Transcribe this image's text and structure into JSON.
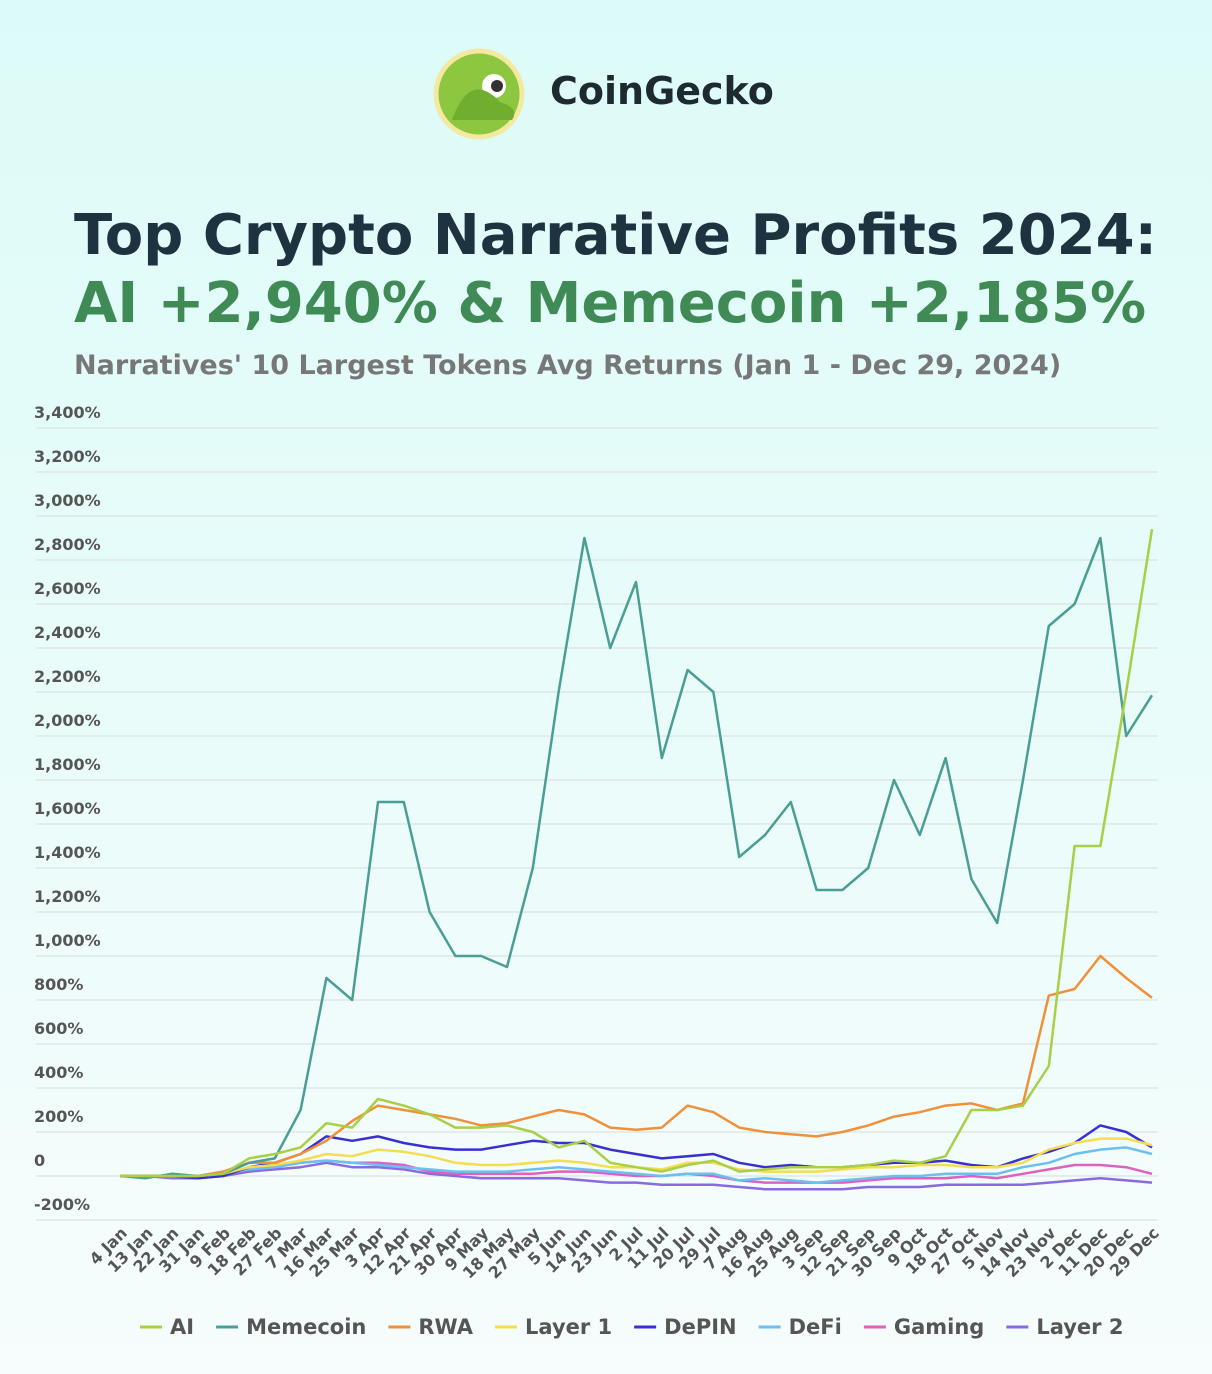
{
  "brand": "CoinGecko",
  "chart_data": {
    "type": "line",
    "title": "Top Crypto Narrative Profits 2024:",
    "headline": "AI +2,940% & Memecoin +2,185%",
    "subtitle": "Narratives' 10 Largest Tokens Avg Returns (Jan 1 - Dec 29, 2024)",
    "x": [
      "4 Jan",
      "13 Jan",
      "22 Jan",
      "31 Jan",
      "9 Feb",
      "18 Feb",
      "27 Feb",
      "7 Mar",
      "16 Mar",
      "25 Mar",
      "3 Apr",
      "12 Apr",
      "21 Apr",
      "30 Apr",
      "9 May",
      "18 May",
      "27 May",
      "5 Jun",
      "14 Jun",
      "23 Jun",
      "2 Jul",
      "11 Jul",
      "20 Jul",
      "29 Jul",
      "7 Aug",
      "16 Aug",
      "25 Aug",
      "3 Sep",
      "12 Sep",
      "21 Sep",
      "30 Sep",
      "9 Oct",
      "18 Oct",
      "27 Oct",
      "5 Nov",
      "14 Nov",
      "23 Nov",
      "2 Dec",
      "11 Dec",
      "20 Dec",
      "29 Dec"
    ],
    "ylim": [
      -200,
      3400
    ],
    "yticks": [
      {
        "value": -200,
        "label": "-200%"
      },
      0,
      {
        "value": 200,
        "label": "200%"
      },
      {
        "value": 400,
        "label": "400%"
      },
      {
        "value": 600,
        "label": "600%"
      },
      {
        "value": 800,
        "label": "800%"
      },
      {
        "value": 1000,
        "label": "1,000%"
      },
      {
        "value": 1200,
        "label": "1,200%"
      },
      {
        "value": 1400,
        "label": "1,400%"
      },
      {
        "value": 1600,
        "label": "1,600%"
      },
      {
        "value": 1800,
        "label": "1,800%"
      },
      {
        "value": 2000,
        "label": "2,000%"
      },
      {
        "value": 2200,
        "label": "2,200%"
      },
      {
        "value": 2400,
        "label": "2,400%"
      },
      {
        "value": 2600,
        "label": "2,600%"
      },
      {
        "value": 2800,
        "label": "2,800%"
      },
      {
        "value": 3000,
        "label": "3,000%"
      },
      {
        "value": 3200,
        "label": "3,200%"
      },
      {
        "value": 3400,
        "label": "3,400%"
      }
    ],
    "grid": true,
    "series": [
      {
        "name": "AI",
        "color": "#a8cf45",
        "values": [
          0,
          0,
          0,
          0,
          10,
          80,
          100,
          130,
          240,
          220,
          350,
          320,
          280,
          220,
          220,
          230,
          200,
          130,
          160,
          60,
          40,
          20,
          50,
          70,
          20,
          30,
          40,
          40,
          40,
          50,
          70,
          60,
          90,
          300,
          300,
          320,
          500,
          1500,
          1500,
          2200,
          2940
        ]
      },
      {
        "name": "Memecoin",
        "color": "#4a9e94",
        "values": [
          0,
          -10,
          10,
          0,
          10,
          60,
          80,
          300,
          900,
          800,
          1700,
          1700,
          1200,
          1000,
          1000,
          950,
          1400,
          2200,
          2900,
          2400,
          2700,
          1900,
          2300,
          2200,
          1450,
          1550,
          1700,
          1300,
          1300,
          1400,
          1800,
          1550,
          1900,
          1350,
          1150,
          1800,
          2500,
          2600,
          2900,
          2000,
          2185
        ]
      },
      {
        "name": "RWA",
        "color": "#f0913a",
        "values": [
          0,
          0,
          0,
          0,
          20,
          60,
          60,
          100,
          160,
          250,
          320,
          300,
          280,
          260,
          230,
          240,
          270,
          300,
          280,
          220,
          210,
          220,
          320,
          290,
          220,
          200,
          190,
          180,
          200,
          230,
          270,
          290,
          320,
          330,
          300,
          330,
          820,
          850,
          1000,
          900,
          810
        ]
      },
      {
        "name": "Layer 1",
        "color": "#f5dc50",
        "values": [
          0,
          0,
          0,
          0,
          10,
          40,
          50,
          70,
          100,
          90,
          120,
          110,
          90,
          60,
          50,
          50,
          60,
          70,
          60,
          40,
          40,
          30,
          60,
          60,
          30,
          20,
          20,
          20,
          30,
          40,
          40,
          50,
          50,
          40,
          40,
          60,
          120,
          150,
          170,
          170,
          140
        ]
      },
      {
        "name": "DePIN",
        "color": "#3a2fd0",
        "values": [
          0,
          0,
          0,
          -10,
          0,
          40,
          60,
          100,
          180,
          160,
          180,
          150,
          130,
          120,
          120,
          140,
          160,
          150,
          150,
          120,
          100,
          80,
          90,
          100,
          60,
          40,
          50,
          40,
          40,
          50,
          60,
          60,
          70,
          50,
          40,
          80,
          110,
          150,
          230,
          200,
          130
        ]
      },
      {
        "name": "DeFi",
        "color": "#6cc0f0",
        "values": [
          0,
          0,
          0,
          0,
          10,
          30,
          40,
          60,
          70,
          60,
          50,
          40,
          30,
          20,
          20,
          20,
          30,
          40,
          30,
          20,
          10,
          0,
          10,
          10,
          -20,
          -10,
          -20,
          -30,
          -20,
          -10,
          0,
          0,
          10,
          10,
          10,
          40,
          60,
          100,
          120,
          130,
          100
        ]
      },
      {
        "name": "Gaming",
        "color": "#e060c0",
        "values": [
          0,
          0,
          0,
          0,
          10,
          30,
          40,
          60,
          70,
          60,
          60,
          50,
          20,
          10,
          10,
          10,
          10,
          20,
          20,
          10,
          0,
          0,
          10,
          0,
          -20,
          -30,
          -30,
          -30,
          -30,
          -20,
          -10,
          -10,
          -10,
          0,
          -10,
          10,
          30,
          50,
          50,
          40,
          10
        ]
      },
      {
        "name": "Layer 2",
        "color": "#8a6ae0",
        "values": [
          0,
          0,
          -10,
          -10,
          0,
          20,
          30,
          40,
          60,
          40,
          40,
          30,
          10,
          0,
          -10,
          -10,
          -10,
          -10,
          -20,
          -30,
          -30,
          -40,
          -40,
          -40,
          -50,
          -60,
          -60,
          -60,
          -60,
          -50,
          -50,
          -50,
          -40,
          -40,
          -40,
          -40,
          -30,
          -20,
          -10,
          -20,
          -30
        ]
      }
    ]
  }
}
